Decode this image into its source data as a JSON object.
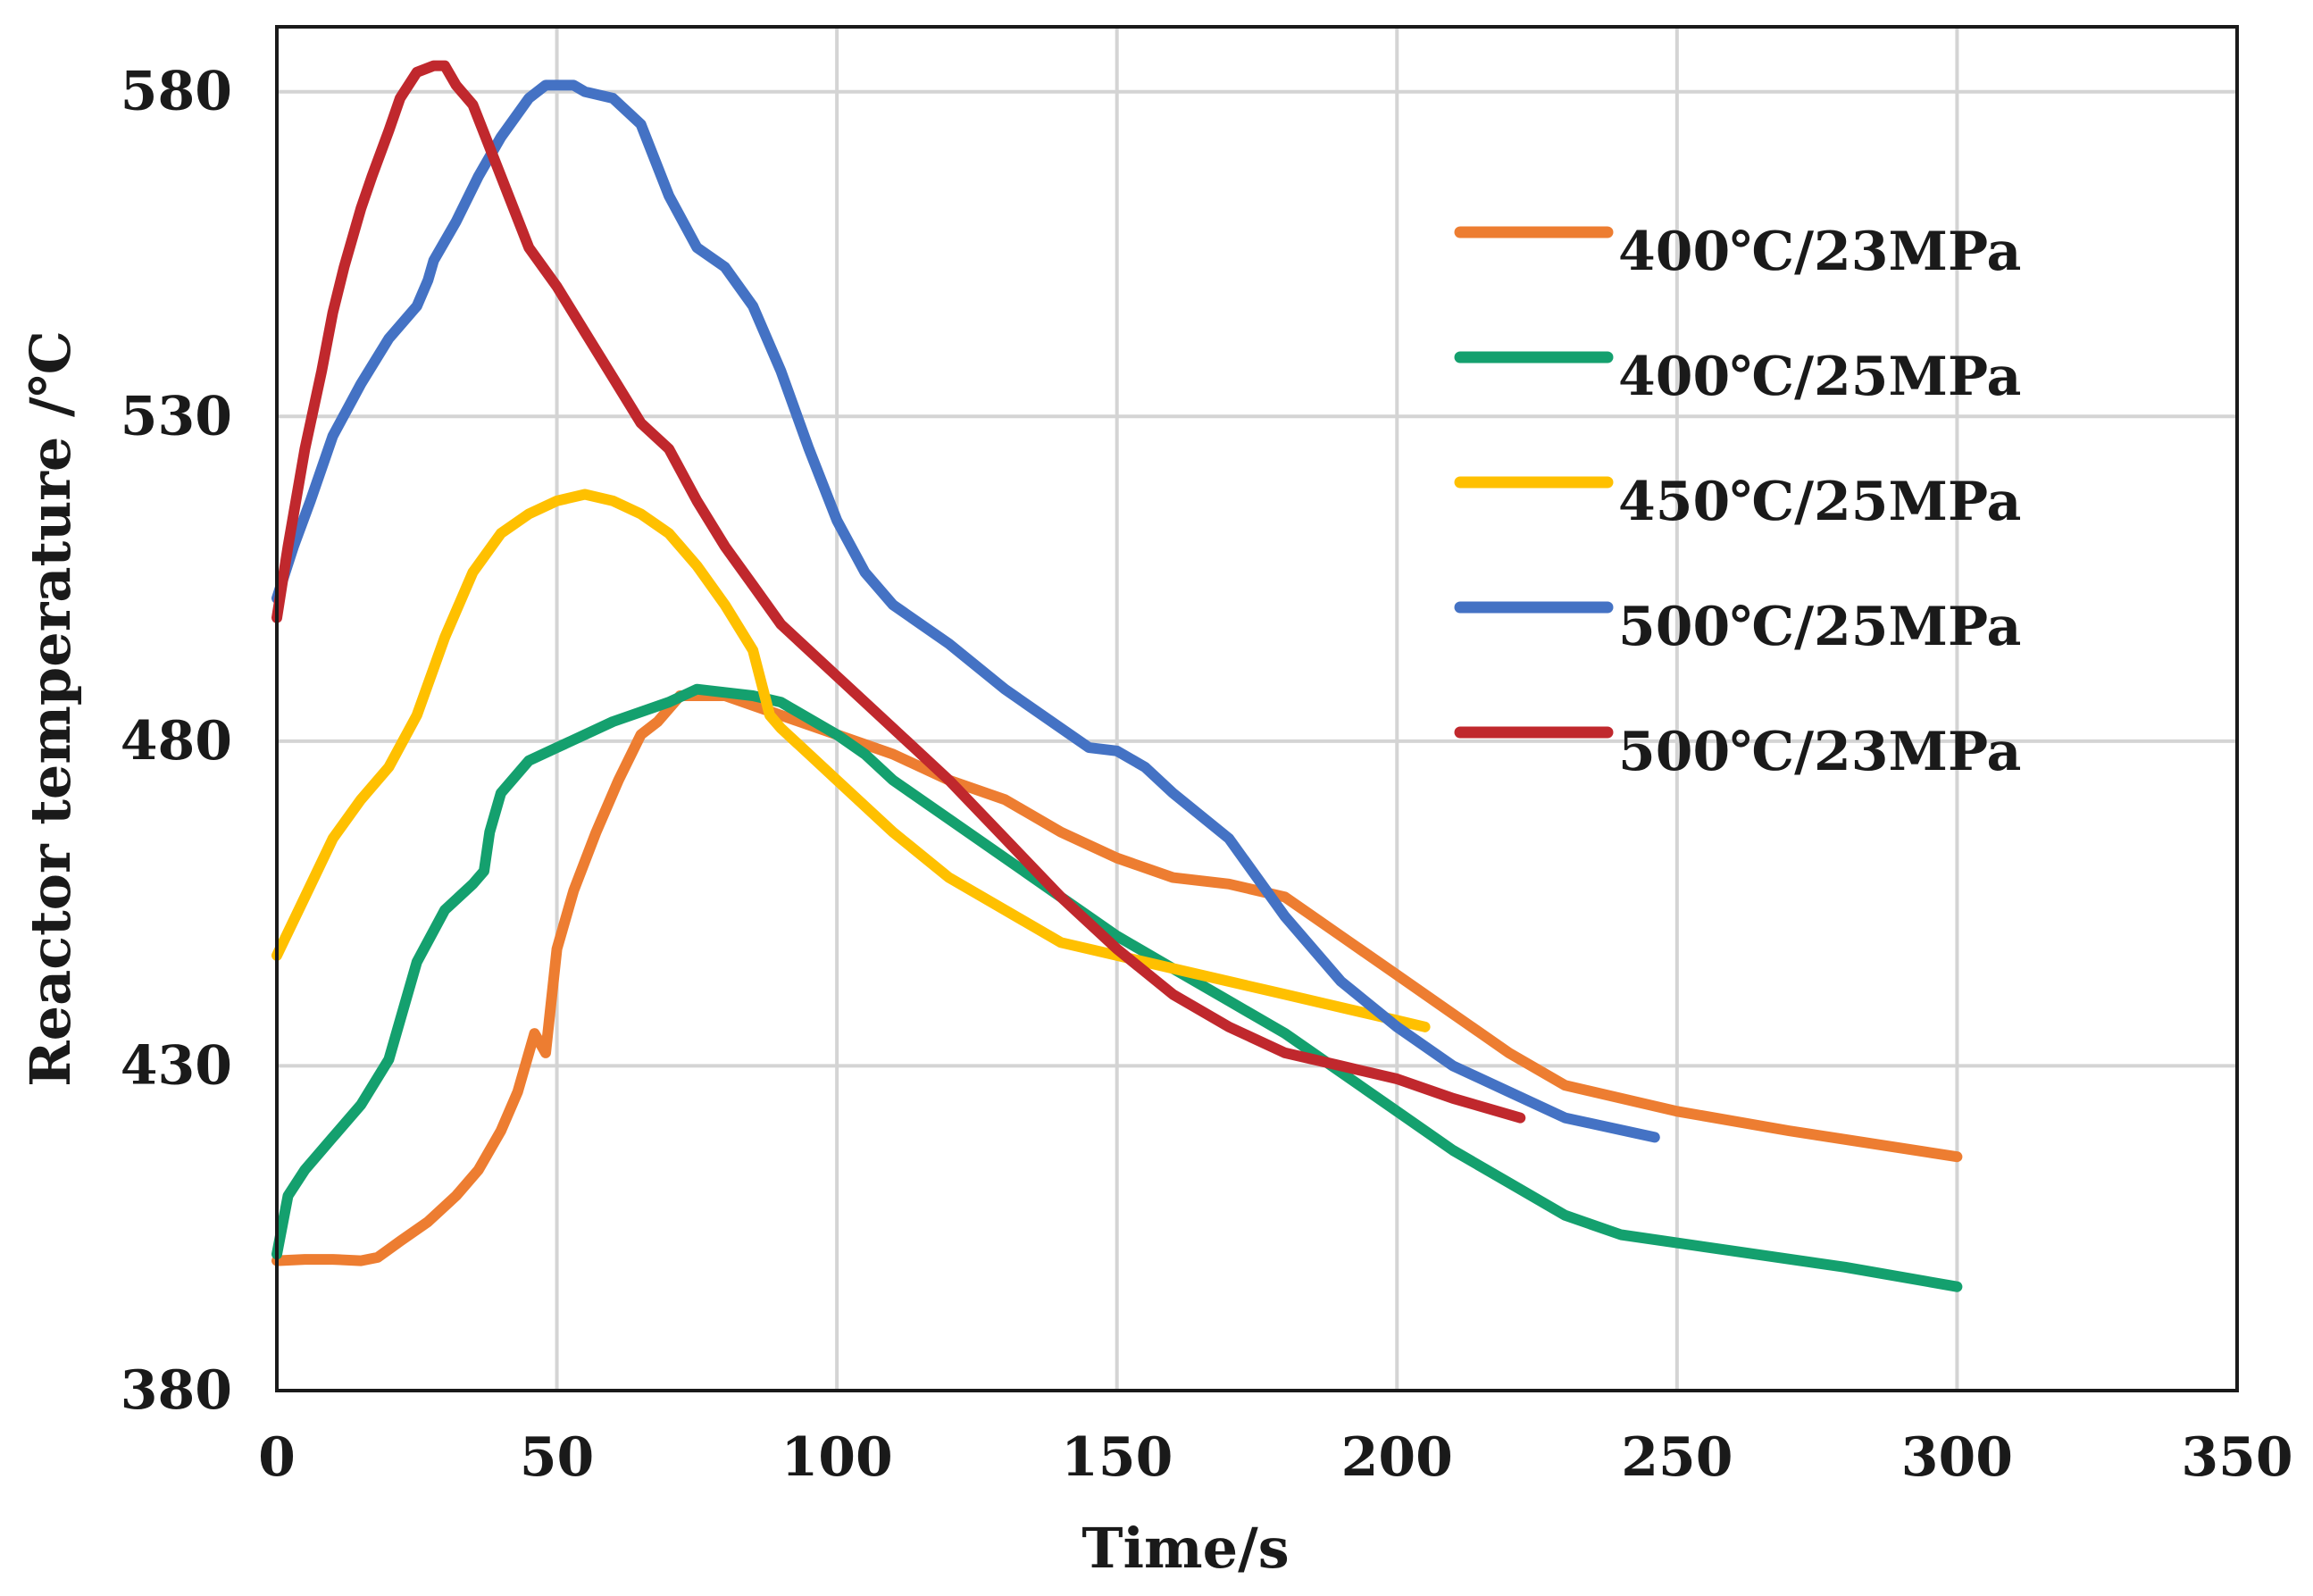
{
  "chart_data": {
    "type": "line",
    "title": "",
    "xlabel": "Time/s",
    "ylabel": "Reactor temperature /℃",
    "xlim": [
      0,
      350
    ],
    "ylim": [
      380,
      590
    ],
    "xticks": [
      0,
      50,
      100,
      150,
      200,
      250,
      300,
      350
    ],
    "yticks": [
      380,
      430,
      480,
      530,
      580
    ],
    "grid": true,
    "legend_position": "right",
    "series": [
      {
        "name": "400℃/23MPa",
        "color": "#ED7D31",
        "points": [
          [
            0,
            400
          ],
          [
            5,
            400.2
          ],
          [
            10,
            400.2
          ],
          [
            15,
            400
          ],
          [
            18,
            400.5
          ],
          [
            22,
            403
          ],
          [
            27,
            406
          ],
          [
            32,
            410
          ],
          [
            36,
            414
          ],
          [
            40,
            420
          ],
          [
            43,
            426
          ],
          [
            46,
            435
          ],
          [
            48,
            432
          ],
          [
            50,
            448
          ],
          [
            53,
            457
          ],
          [
            57,
            466
          ],
          [
            61,
            474
          ],
          [
            65,
            481
          ],
          [
            68,
            483
          ],
          [
            72,
            487
          ],
          [
            80,
            487
          ],
          [
            90,
            484
          ],
          [
            100,
            481
          ],
          [
            110,
            478
          ],
          [
            120,
            474
          ],
          [
            130,
            471
          ],
          [
            140,
            466
          ],
          [
            150,
            462
          ],
          [
            160,
            459
          ],
          [
            170,
            458
          ],
          [
            180,
            456
          ],
          [
            190,
            450
          ],
          [
            200,
            444
          ],
          [
            210,
            438
          ],
          [
            220,
            432
          ],
          [
            230,
            427
          ],
          [
            250,
            423
          ],
          [
            270,
            420
          ],
          [
            300,
            416
          ]
        ]
      },
      {
        "name": "400℃/25MPa",
        "color": "#14A06E",
        "points": [
          [
            0,
            401
          ],
          [
            2,
            410
          ],
          [
            5,
            414
          ],
          [
            10,
            419
          ],
          [
            15,
            424
          ],
          [
            20,
            431
          ],
          [
            25,
            446
          ],
          [
            30,
            454
          ],
          [
            35,
            458
          ],
          [
            37,
            460
          ],
          [
            38,
            466
          ],
          [
            40,
            472
          ],
          [
            45,
            477
          ],
          [
            50,
            479
          ],
          [
            60,
            483
          ],
          [
            70,
            486
          ],
          [
            75,
            488
          ],
          [
            80,
            487.5
          ],
          [
            85,
            487
          ],
          [
            90,
            486
          ],
          [
            100,
            481
          ],
          [
            105,
            478
          ],
          [
            110,
            474
          ],
          [
            120,
            468
          ],
          [
            130,
            462
          ],
          [
            140,
            456
          ],
          [
            150,
            450
          ],
          [
            160,
            445
          ],
          [
            170,
            440
          ],
          [
            180,
            435
          ],
          [
            190,
            429
          ],
          [
            200,
            423
          ],
          [
            210,
            417
          ],
          [
            220,
            412
          ],
          [
            230,
            407
          ],
          [
            240,
            404
          ],
          [
            260,
            401.5
          ],
          [
            280,
            399
          ],
          [
            300,
            396
          ]
        ]
      },
      {
        "name": "450℃/25MPa",
        "color": "#FFC000",
        "points": [
          [
            0,
            447
          ],
          [
            5,
            456
          ],
          [
            10,
            465
          ],
          [
            15,
            471
          ],
          [
            20,
            476
          ],
          [
            25,
            484
          ],
          [
            30,
            496
          ],
          [
            35,
            506
          ],
          [
            40,
            512
          ],
          [
            45,
            515
          ],
          [
            50,
            517
          ],
          [
            55,
            518
          ],
          [
            60,
            517
          ],
          [
            65,
            515
          ],
          [
            70,
            512
          ],
          [
            75,
            507
          ],
          [
            80,
            501
          ],
          [
            85,
            494
          ],
          [
            88,
            484
          ],
          [
            90,
            482
          ],
          [
            95,
            478
          ],
          [
            100,
            474
          ],
          [
            110,
            466
          ],
          [
            120,
            459
          ],
          [
            130,
            454
          ],
          [
            140,
            449
          ],
          [
            150,
            447
          ],
          [
            160,
            445
          ],
          [
            170,
            443
          ],
          [
            180,
            441
          ],
          [
            190,
            439
          ],
          [
            200,
            437
          ],
          [
            205,
            436
          ]
        ]
      },
      {
        "name": "500℃/25MPa",
        "color": "#4472C4",
        "points": [
          [
            0,
            502
          ],
          [
            3,
            510
          ],
          [
            6,
            517
          ],
          [
            10,
            527
          ],
          [
            15,
            535
          ],
          [
            20,
            542
          ],
          [
            25,
            547
          ],
          [
            27,
            551
          ],
          [
            28,
            554
          ],
          [
            32,
            560
          ],
          [
            36,
            567
          ],
          [
            40,
            573
          ],
          [
            45,
            579
          ],
          [
            48,
            581
          ],
          [
            50,
            581
          ],
          [
            53,
            581
          ],
          [
            55,
            580
          ],
          [
            60,
            579
          ],
          [
            65,
            575
          ],
          [
            70,
            564
          ],
          [
            75,
            556
          ],
          [
            80,
            553
          ],
          [
            85,
            547
          ],
          [
            90,
            537
          ],
          [
            95,
            525
          ],
          [
            100,
            514
          ],
          [
            105,
            506
          ],
          [
            110,
            501
          ],
          [
            120,
            495
          ],
          [
            130,
            488
          ],
          [
            140,
            482
          ],
          [
            145,
            479
          ],
          [
            150,
            478.5
          ],
          [
            155,
            476
          ],
          [
            160,
            472
          ],
          [
            170,
            465
          ],
          [
            180,
            453
          ],
          [
            190,
            443
          ],
          [
            200,
            436
          ],
          [
            210,
            430
          ],
          [
            220,
            426
          ],
          [
            230,
            422
          ],
          [
            246,
            419
          ]
        ]
      },
      {
        "name": "500℃/23MPa",
        "color": "#C0282D",
        "points": [
          [
            0,
            499
          ],
          [
            2,
            510
          ],
          [
            5,
            525
          ],
          [
            8,
            537
          ],
          [
            10,
            546
          ],
          [
            12,
            553
          ],
          [
            15,
            562
          ],
          [
            17,
            567
          ],
          [
            20,
            574
          ],
          [
            22,
            579
          ],
          [
            25,
            583
          ],
          [
            28,
            584
          ],
          [
            30,
            584
          ],
          [
            32,
            581
          ],
          [
            35,
            578
          ],
          [
            40,
            567
          ],
          [
            45,
            556
          ],
          [
            50,
            550
          ],
          [
            55,
            543
          ],
          [
            60,
            536
          ],
          [
            65,
            529
          ],
          [
            70,
            525
          ],
          [
            75,
            517
          ],
          [
            80,
            510
          ],
          [
            85,
            504
          ],
          [
            90,
            498
          ],
          [
            100,
            490
          ],
          [
            110,
            482
          ],
          [
            120,
            474
          ],
          [
            130,
            465
          ],
          [
            140,
            456
          ],
          [
            150,
            448
          ],
          [
            160,
            441
          ],
          [
            170,
            436
          ],
          [
            180,
            432
          ],
          [
            190,
            430
          ],
          [
            200,
            428
          ],
          [
            210,
            425
          ],
          [
            222,
            422
          ]
        ]
      }
    ]
  }
}
